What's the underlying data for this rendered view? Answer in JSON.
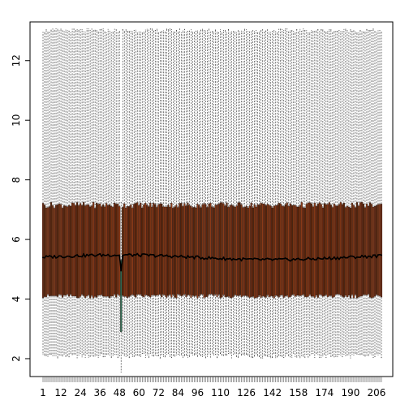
{
  "chart_data": {
    "type": "box",
    "n_boxes": 209,
    "x_tick_labels": [
      "1",
      "12",
      "24",
      "36",
      "48",
      "60",
      "72",
      "84",
      "96",
      "110",
      "126",
      "142",
      "158",
      "174",
      "190",
      "206"
    ],
    "y_tick_labels": [
      "2",
      "4",
      "6",
      "8",
      "10",
      "12"
    ],
    "ylim": [
      1.4,
      13.3
    ],
    "title": "",
    "xlabel": "",
    "ylabel": "",
    "grid": false,
    "legend": "none",
    "typical_box": {
      "whisker_low": 2.1,
      "q1": 4.1,
      "median": 5.4,
      "q3": 7.15,
      "whisker_high": 13.0
    },
    "outlier_box": {
      "index": 49,
      "whisker_low": 1.55,
      "q1": 2.9,
      "median": 4.95,
      "q3": 5.3,
      "whisker_high": 7.25,
      "fill_color": "#2f6a53"
    },
    "box_fill_colors": [
      "#8a3a18",
      "#6b2a12",
      "#5a2409",
      "#7a3414"
    ],
    "median_color": "#000000",
    "whisker_color": "#444444"
  }
}
